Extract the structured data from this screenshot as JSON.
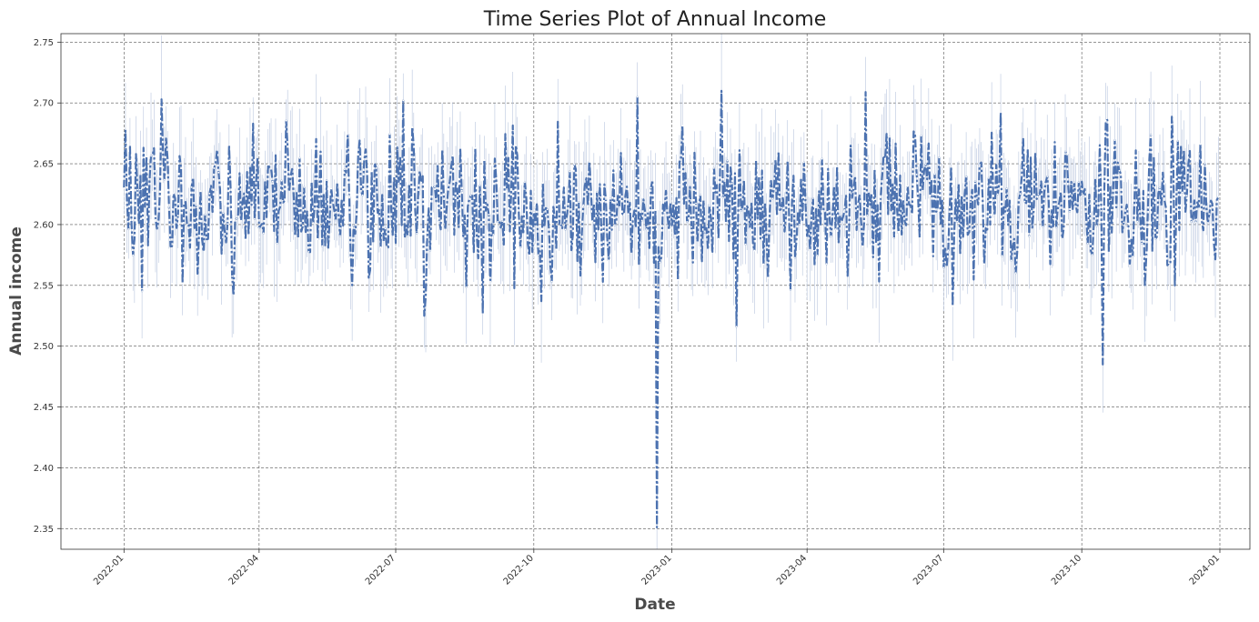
{
  "chart_data": {
    "type": "line",
    "title": "Time Series Plot of Annual Income",
    "xlabel": "Date",
    "ylabel": "Annual income",
    "x_start": "2022-01-01",
    "x_end": "2023-12-31",
    "xlim": [
      "2021-11-20",
      "2024-01-21"
    ],
    "ylim": [
      2.333,
      2.757
    ],
    "x_ticks": [
      "2022-01-01",
      "2022-04-01",
      "2022-07-01",
      "2022-10-01",
      "2023-01-01",
      "2023-04-01",
      "2023-07-01",
      "2023-10-01",
      "2024-01-01"
    ],
    "x_tick_labels": [
      "2022-01",
      "2022-04",
      "2022-07",
      "2022-10",
      "2023-01",
      "2023-04",
      "2023-07",
      "2023-10",
      "2024-01"
    ],
    "y_ticks": [
      2.35,
      2.4,
      2.45,
      2.5,
      2.55,
      2.6,
      2.65,
      2.7,
      2.75
    ],
    "y_tick_labels": [
      "2.35",
      "2.40",
      "2.45",
      "2.50",
      "2.55",
      "2.60",
      "2.65",
      "2.70",
      "2.75"
    ],
    "grid": true,
    "line_color": "#4c72b0",
    "band_color": "#c8d3e6",
    "mean_level": 2.615,
    "noise_amplitude": 0.028,
    "band_halfwidth": 0.035,
    "anchors": [
      {
        "date": "2022-01-26",
        "value": 2.703
      },
      {
        "date": "2022-03-15",
        "value": 2.542
      },
      {
        "date": "2022-07-06",
        "value": 2.702
      },
      {
        "date": "2022-07-20",
        "value": 2.525
      },
      {
        "date": "2022-08-28",
        "value": 2.527
      },
      {
        "date": "2022-12-09",
        "value": 2.705
      },
      {
        "date": "2022-12-22",
        "value": 2.351
      },
      {
        "date": "2023-02-03",
        "value": 2.71
      },
      {
        "date": "2023-02-13",
        "value": 2.516
      },
      {
        "date": "2023-05-10",
        "value": 2.709
      },
      {
        "date": "2023-07-07",
        "value": 2.533
      },
      {
        "date": "2023-08-08",
        "value": 2.692
      },
      {
        "date": "2023-10-15",
        "value": 2.485
      },
      {
        "date": "2023-10-18",
        "value": 2.686
      }
    ]
  }
}
